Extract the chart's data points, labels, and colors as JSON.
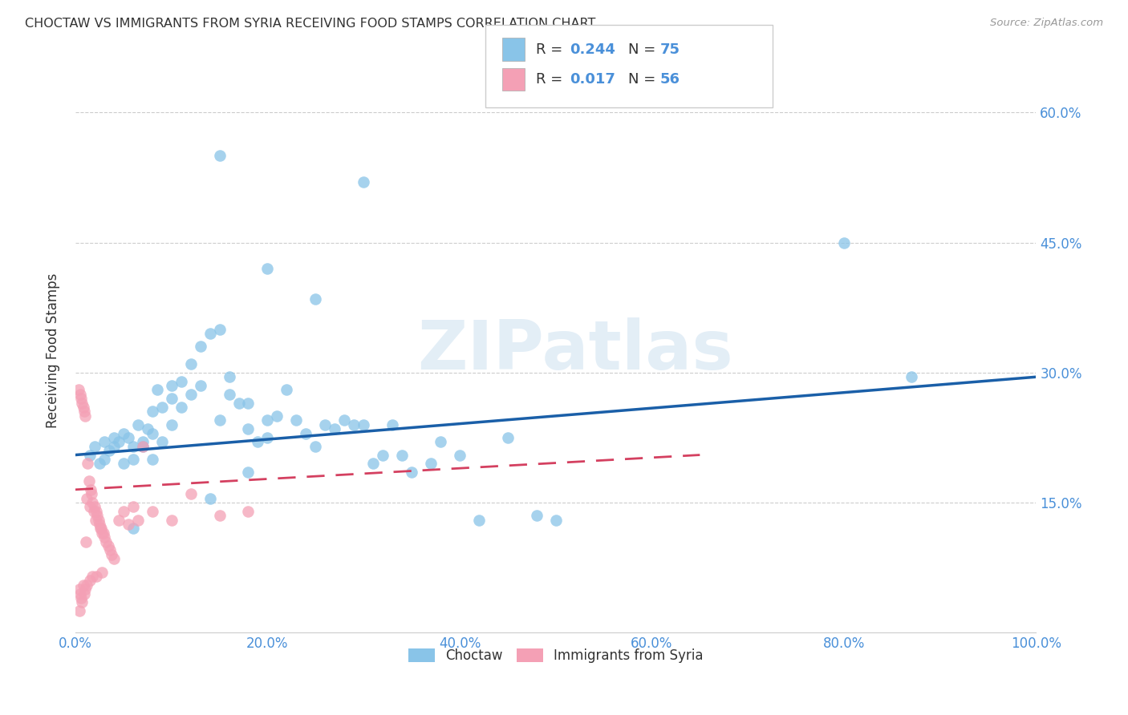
{
  "title": "CHOCTAW VS IMMIGRANTS FROM SYRIA RECEIVING FOOD STAMPS CORRELATION CHART",
  "source": "Source: ZipAtlas.com",
  "ylabel": "Receiving Food Stamps",
  "background_color": "#ffffff",
  "title_color": "#333333",
  "title_fontsize": 11.5,
  "tick_label_color": "#4a90d9",
  "watermark_text": "ZIPatlas",
  "legend_labels": [
    "Choctaw",
    "Immigrants from Syria"
  ],
  "blue_color": "#89c4e8",
  "pink_color": "#f4a0b5",
  "blue_line_color": "#1a5fa8",
  "pink_line_color": "#d44060",
  "xlim": [
    0.0,
    1.0
  ],
  "ylim": [
    0.0,
    0.65
  ],
  "xticks": [
    0.0,
    0.2,
    0.4,
    0.6,
    0.8,
    1.0
  ],
  "yticks": [
    0.15,
    0.3,
    0.45,
    0.6
  ],
  "ytick_labels": [
    "15.0%",
    "30.0%",
    "45.0%",
    "60.0%"
  ],
  "xtick_labels": [
    "0.0%",
    "20.0%",
    "40.0%",
    "60.0%",
    "80.0%",
    "100.0%"
  ],
  "blue_x": [
    0.015,
    0.02,
    0.025,
    0.03,
    0.03,
    0.035,
    0.04,
    0.04,
    0.045,
    0.05,
    0.05,
    0.055,
    0.06,
    0.06,
    0.065,
    0.07,
    0.07,
    0.075,
    0.08,
    0.08,
    0.085,
    0.09,
    0.09,
    0.1,
    0.1,
    0.11,
    0.11,
    0.12,
    0.12,
    0.13,
    0.13,
    0.14,
    0.15,
    0.15,
    0.16,
    0.16,
    0.17,
    0.18,
    0.18,
    0.19,
    0.2,
    0.2,
    0.21,
    0.22,
    0.23,
    0.24,
    0.25,
    0.26,
    0.27,
    0.28,
    0.29,
    0.3,
    0.31,
    0.32,
    0.33,
    0.34,
    0.35,
    0.37,
    0.38,
    0.4,
    0.42,
    0.45,
    0.48,
    0.5,
    0.3,
    0.25,
    0.2,
    0.15,
    0.1,
    0.08,
    0.06,
    0.18,
    0.14,
    0.8,
    0.87
  ],
  "blue_y": [
    0.205,
    0.215,
    0.195,
    0.2,
    0.22,
    0.21,
    0.215,
    0.225,
    0.22,
    0.23,
    0.195,
    0.225,
    0.215,
    0.2,
    0.24,
    0.215,
    0.22,
    0.235,
    0.255,
    0.23,
    0.28,
    0.26,
    0.22,
    0.27,
    0.24,
    0.29,
    0.26,
    0.31,
    0.275,
    0.33,
    0.285,
    0.345,
    0.35,
    0.245,
    0.295,
    0.275,
    0.265,
    0.265,
    0.235,
    0.22,
    0.245,
    0.225,
    0.25,
    0.28,
    0.245,
    0.23,
    0.215,
    0.24,
    0.235,
    0.245,
    0.24,
    0.24,
    0.195,
    0.205,
    0.24,
    0.205,
    0.185,
    0.195,
    0.22,
    0.205,
    0.13,
    0.225,
    0.135,
    0.13,
    0.52,
    0.385,
    0.42,
    0.55,
    0.285,
    0.2,
    0.12,
    0.185,
    0.155,
    0.45,
    0.295
  ],
  "pink_x": [
    0.003,
    0.004,
    0.005,
    0.006,
    0.007,
    0.008,
    0.009,
    0.01,
    0.011,
    0.012,
    0.013,
    0.014,
    0.015,
    0.016,
    0.017,
    0.018,
    0.019,
    0.02,
    0.021,
    0.022,
    0.023,
    0.024,
    0.025,
    0.026,
    0.027,
    0.028,
    0.029,
    0.03,
    0.032,
    0.034,
    0.036,
    0.038,
    0.04,
    0.045,
    0.05,
    0.055,
    0.06,
    0.065,
    0.07,
    0.08,
    0.1,
    0.12,
    0.15,
    0.18,
    0.004,
    0.005,
    0.006,
    0.007,
    0.008,
    0.009,
    0.01,
    0.012,
    0.015,
    0.018,
    0.022,
    0.028
  ],
  "pink_y": [
    0.28,
    0.025,
    0.275,
    0.27,
    0.265,
    0.26,
    0.255,
    0.25,
    0.105,
    0.155,
    0.195,
    0.175,
    0.145,
    0.165,
    0.16,
    0.15,
    0.14,
    0.145,
    0.13,
    0.14,
    0.135,
    0.13,
    0.125,
    0.12,
    0.12,
    0.115,
    0.115,
    0.11,
    0.105,
    0.1,
    0.095,
    0.09,
    0.085,
    0.13,
    0.14,
    0.125,
    0.145,
    0.13,
    0.215,
    0.14,
    0.13,
    0.16,
    0.135,
    0.14,
    0.05,
    0.045,
    0.04,
    0.035,
    0.055,
    0.045,
    0.05,
    0.055,
    0.06,
    0.065,
    0.065,
    0.07
  ],
  "pink_line_xlim": [
    0.0,
    0.65
  ]
}
